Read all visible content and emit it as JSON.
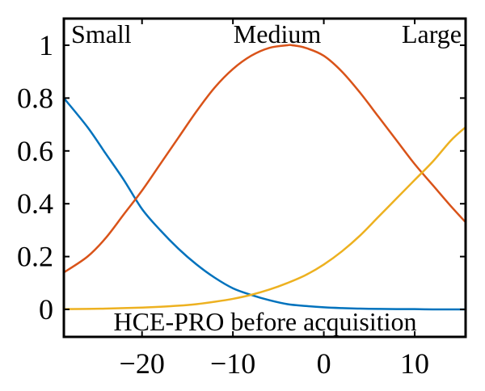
{
  "chart_data": {
    "type": "line",
    "title": "",
    "xlabel": "HCE-PRO before acquisition",
    "ylabel": "",
    "xlim": [
      -28.6,
      15.6
    ],
    "ylim": [
      0,
      1.05
    ],
    "xticks": [
      -20,
      -10,
      0,
      10
    ],
    "xtick_labels": [
      "−20",
      "−10",
      "0",
      "10"
    ],
    "yticks": [
      0,
      0.2,
      0.4,
      0.6,
      0.8,
      1
    ],
    "ytick_labels": [
      "0",
      "0.2",
      "0.4",
      "0.6",
      "0.8",
      "1"
    ],
    "grid": false,
    "legend": "none",
    "set_labels": [
      "Small",
      "Medium",
      "Large"
    ],
    "series": [
      {
        "name": "Small",
        "color": "#0072BD",
        "x": [
          -28.6,
          -26,
          -24,
          -22,
          -20,
          -18,
          -16,
          -14,
          -12,
          -10,
          -8,
          -6,
          -4,
          -2,
          0,
          2,
          4,
          6,
          8,
          10,
          12,
          14,
          15.6
        ],
        "y": [
          0.8,
          0.69,
          0.59,
          0.49,
          0.38,
          0.3,
          0.23,
          0.17,
          0.12,
          0.08,
          0.055,
          0.035,
          0.02,
          0.013,
          0.008,
          0.005,
          0.003,
          0.002,
          0.001,
          0.001,
          0.0,
          0.0,
          0.0
        ]
      },
      {
        "name": "Medium",
        "color": "#D95319",
        "x": [
          -28.6,
          -26,
          -24,
          -22,
          -20,
          -18,
          -16,
          -14,
          -12,
          -10,
          -8,
          -6,
          -4,
          -3.5,
          -2,
          0,
          2,
          4,
          6,
          8,
          10,
          12,
          14,
          15.6
        ],
        "y": [
          0.14,
          0.2,
          0.27,
          0.36,
          0.45,
          0.55,
          0.65,
          0.75,
          0.84,
          0.91,
          0.96,
          0.99,
          1.0,
          1.0,
          0.99,
          0.96,
          0.9,
          0.82,
          0.73,
          0.64,
          0.55,
          0.47,
          0.39,
          0.33
        ]
      },
      {
        "name": "Large",
        "color": "#EDB120",
        "x": [
          -28.6,
          -26,
          -24,
          -22,
          -20,
          -18,
          -16,
          -14,
          -12,
          -10,
          -8,
          -6,
          -4,
          -2,
          0,
          2,
          4,
          6,
          8,
          10,
          12,
          14,
          15.6
        ],
        "y": [
          0.001,
          0.002,
          0.003,
          0.005,
          0.007,
          0.01,
          0.014,
          0.02,
          0.029,
          0.04,
          0.055,
          0.075,
          0.1,
          0.13,
          0.17,
          0.22,
          0.28,
          0.35,
          0.42,
          0.49,
          0.56,
          0.64,
          0.69
        ]
      }
    ]
  }
}
